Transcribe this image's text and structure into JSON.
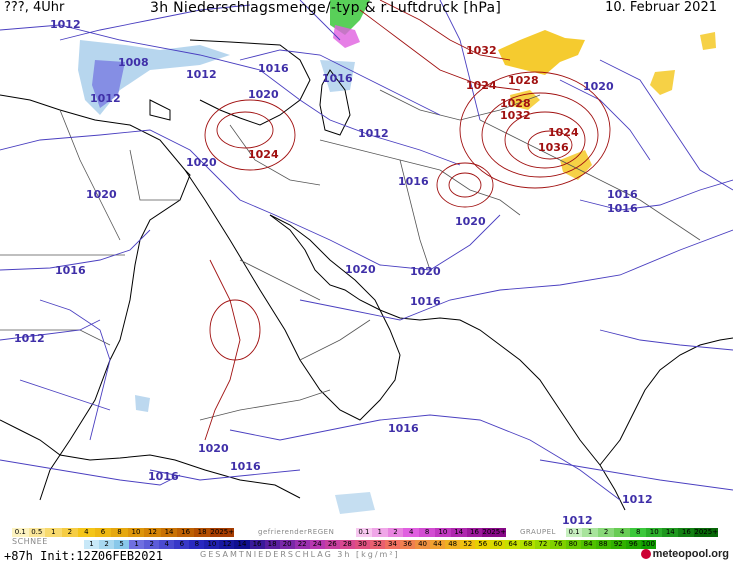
{
  "header": {
    "left": "???, 4Uhr",
    "title": "3h Niederschlagsmenge/-typ & r.Luftdruck [hPa]",
    "date": "10. Februar 2021"
  },
  "isobar_labels": {
    "l1": "1012",
    "l2": "1008",
    "l3": "1012",
    "l4": "1016",
    "l5": "1016",
    "l6": "1012",
    "l7": "1020",
    "l8": "1012",
    "l9": "1020",
    "l10": "1020",
    "l11": "1016",
    "l12": "1020",
    "l13": "1016",
    "l14": "1020",
    "l15": "1020",
    "l16": "1016",
    "l17": "1016",
    "l18": "1012",
    "l19": "1016",
    "l20": "1020",
    "l21": "1016",
    "l22": "1016",
    "l23": "1012",
    "l24": "1012",
    "l25": "1020",
    "l26": "1016",
    "h1": "1032",
    "h2": "1028",
    "h3": "1024",
    "h4": "1028",
    "h5": "1032",
    "h6": "1024",
    "h7": "1036",
    "h8": "1024"
  },
  "legend": {
    "snow_caption": "SCHNEE",
    "snow_scale": [
      "0.1",
      "0.5",
      "1",
      "2",
      "4",
      "6",
      "8",
      "10",
      "12",
      "14",
      "16",
      "18",
      "2025+"
    ],
    "freezing_caption": "gefrierenderREGEN",
    "freezing_scale": [
      "0.1",
      "1",
      "2",
      "4",
      "8",
      "10",
      "14",
      "16",
      "2025+"
    ],
    "graupel_caption": "GRAUPEL",
    "graupel_scale": [
      "0.1",
      "1",
      "2",
      "4",
      "8",
      "10",
      "14",
      "16",
      "2025+"
    ],
    "total_scale": [
      "1",
      "2",
      "5",
      "1",
      "2",
      "4",
      "6",
      "8",
      "10",
      "12",
      "14",
      "16",
      "18",
      "20",
      "22",
      "24",
      "26",
      "28",
      "30",
      "32",
      "34",
      "36",
      "40",
      "44",
      "48",
      "52",
      "56",
      "60",
      "64",
      "68",
      "72",
      "76",
      "80",
      "84",
      "88",
      "92",
      "96",
      "100"
    ],
    "total_caption": "GESAMTNIEDERSCHLAG 3h [kg/m²]",
    "run_info": "+87h Init:12Z06FEB2021",
    "brand": "meteopool.org"
  },
  "colors": {
    "isobar_low": "#4a3fc0",
    "isobar_high": "#a01010",
    "coast": "#000000",
    "border": "#555555",
    "snow_heavy": "#f4c518",
    "rain_light": "#9fc8e8",
    "rain_mid": "#6f6fe0",
    "freezing": "#e060e0",
    "graupel": "#3cc83c"
  }
}
